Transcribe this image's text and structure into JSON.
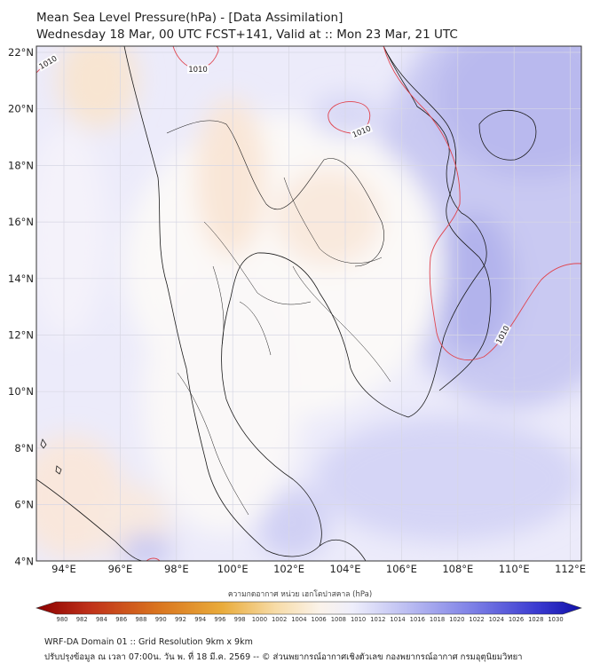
{
  "header": {
    "title": "Mean Sea Level Pressure(hPa) - [Data Assimilation]",
    "subtitle": "Wednesday 18 Mar, 00 UTC FCST+141, Valid at :: Mon 23 Mar, 21 UTC"
  },
  "map": {
    "lat_labels": [
      "22°N",
      "20°N",
      "18°N",
      "16°N",
      "14°N",
      "12°N",
      "10°N",
      "8°N",
      "6°N",
      "4°N"
    ],
    "lon_labels": [
      "94°E",
      "96°E",
      "98°E",
      "100°E",
      "102°E",
      "104°E",
      "106°E",
      "108°E",
      "110°E",
      "112°E"
    ],
    "contour_label": "1010",
    "contour_color": "#e0444e",
    "land_outline_color": "#1a1a1a"
  },
  "colorbar": {
    "title": "ความกดอากาศ หน่วย เฮกโตปาสคาล (hPa)",
    "ticks": [
      "980",
      "982",
      "984",
      "986",
      "988",
      "990",
      "992",
      "994",
      "996",
      "998",
      "1000",
      "1002",
      "1004",
      "1006",
      "1008",
      "1010",
      "1012",
      "1014",
      "1016",
      "1018",
      "1020",
      "1022",
      "1024",
      "1026",
      "1028",
      "1030"
    ],
    "low_color": "#8b0000",
    "high_color": "#1010a8"
  },
  "footer": {
    "line1": "WRF-DA Domain 01 :: Grid Resolution 9km x 9km",
    "line2": "ปรับปรุงข้อมูล ณ เวลา 07:00น. วัน พ. ที่ 18 มี.ค. 2569 -- © ส่วนพยากรณ์อากาศเชิงตัวเลข กองพยากรณ์อากาศ กรมอุตุนิยมวิทยา"
  }
}
